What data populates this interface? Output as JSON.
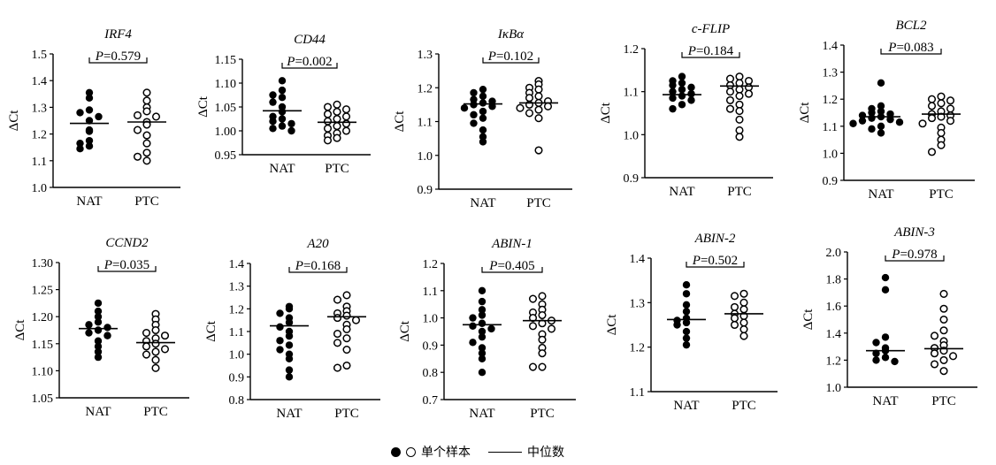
{
  "legend": {
    "individual_label": "单个样本",
    "median_label": "中位数"
  },
  "chart_data": [
    {
      "type": "scatter",
      "title": "IRF4",
      "p_label": "P=0.579",
      "ylabel": "ΔCt",
      "ylim": [
        1.0,
        1.5
      ],
      "yticks": [
        "1.0",
        "1.1",
        "1.2",
        "1.3",
        "1.4",
        "1.5"
      ],
      "categories": [
        "NAT",
        "PTC"
      ],
      "series": [
        {
          "name": "NAT",
          "values": [
            1.355,
            1.335,
            1.29,
            1.28,
            1.265,
            1.25,
            1.215,
            1.21,
            1.175,
            1.165,
            1.155,
            1.145
          ],
          "median": 1.24
        },
        {
          "name": "PTC",
          "values": [
            1.355,
            1.325,
            1.3,
            1.285,
            1.27,
            1.265,
            1.245,
            1.235,
            1.215,
            1.195,
            1.165,
            1.13,
            1.115,
            1.1
          ],
          "median": 1.245
        }
      ]
    },
    {
      "type": "scatter",
      "title": "CD44",
      "p_label": "P=0.002",
      "ylabel": "ΔCt",
      "ylim": [
        0.95,
        1.15
      ],
      "yticks": [
        "0.95",
        "1.00",
        "1.05",
        "1.10",
        "1.15"
      ],
      "categories": [
        "NAT",
        "PTC"
      ],
      "series": [
        {
          "name": "NAT",
          "values": [
            1.105,
            1.085,
            1.075,
            1.07,
            1.06,
            1.05,
            1.04,
            1.03,
            1.025,
            1.02,
            1.015,
            1.01,
            1.005,
            1.0
          ],
          "median": 1.042
        },
        {
          "name": "PTC",
          "values": [
            1.055,
            1.05,
            1.045,
            1.04,
            1.035,
            1.03,
            1.025,
            1.02,
            1.015,
            1.01,
            1.005,
            1.0,
            0.995,
            0.99,
            0.985,
            0.98
          ],
          "median": 1.018
        }
      ]
    },
    {
      "type": "scatter",
      "title": "IκBα",
      "p_label": "P=0.102",
      "ylabel": "ΔCt",
      "ylim": [
        0.9,
        1.3
      ],
      "yticks": [
        "0.9",
        "1.0",
        "1.1",
        "1.2",
        "1.3"
      ],
      "categories": [
        "NAT",
        "PTC"
      ],
      "series": [
        {
          "name": "NAT",
          "values": [
            1.195,
            1.185,
            1.175,
            1.165,
            1.16,
            1.155,
            1.15,
            1.145,
            1.14,
            1.13,
            1.12,
            1.11,
            1.095,
            1.075,
            1.055,
            1.04
          ],
          "median": 1.152
        },
        {
          "name": "PTC",
          "values": [
            1.22,
            1.21,
            1.2,
            1.195,
            1.185,
            1.175,
            1.17,
            1.16,
            1.155,
            1.15,
            1.145,
            1.14,
            1.135,
            1.125,
            1.11,
            1.015
          ],
          "median": 1.155
        }
      ]
    },
    {
      "type": "scatter",
      "title": "c-FLIP",
      "p_label": "P=0.184",
      "ylabel": "ΔCt",
      "ylim": [
        0.9,
        1.2
      ],
      "yticks": [
        "0.9",
        "1.0",
        "1.1",
        "1.2"
      ],
      "categories": [
        "NAT",
        "PTC"
      ],
      "series": [
        {
          "name": "NAT",
          "values": [
            1.135,
            1.125,
            1.12,
            1.115,
            1.11,
            1.105,
            1.1,
            1.095,
            1.09,
            1.085,
            1.08,
            1.07,
            1.06
          ],
          "median": 1.093
        },
        {
          "name": "PTC",
          "values": [
            1.135,
            1.13,
            1.125,
            1.12,
            1.115,
            1.11,
            1.105,
            1.1,
            1.095,
            1.09,
            1.08,
            1.07,
            1.06,
            1.055,
            1.035,
            1.01,
            0.995
          ],
          "median": 1.113
        }
      ]
    },
    {
      "type": "scatter",
      "title": "BCL2",
      "p_label": "P=0.083",
      "ylabel": "ΔCt",
      "ylim": [
        0.9,
        1.4
      ],
      "yticks": [
        "0.9",
        "1.0",
        "1.1",
        "1.2",
        "1.3",
        "1.4"
      ],
      "categories": [
        "NAT",
        "PTC"
      ],
      "series": [
        {
          "name": "NAT",
          "values": [
            1.26,
            1.175,
            1.165,
            1.155,
            1.15,
            1.145,
            1.14,
            1.135,
            1.13,
            1.125,
            1.12,
            1.115,
            1.11,
            1.1,
            1.09,
            1.075
          ],
          "median": 1.135
        },
        {
          "name": "PTC",
          "values": [
            1.21,
            1.2,
            1.195,
            1.185,
            1.175,
            1.165,
            1.155,
            1.145,
            1.14,
            1.135,
            1.13,
            1.12,
            1.11,
            1.095,
            1.075,
            1.05,
            1.03,
            1.005
          ],
          "median": 1.145
        }
      ]
    },
    {
      "type": "scatter",
      "title": "CCND2",
      "p_label": "P=0.035",
      "ylabel": "ΔCt",
      "ylim": [
        1.05,
        1.3
      ],
      "yticks": [
        "1.05",
        "1.10",
        "1.15",
        "1.20",
        "1.25",
        "1.30"
      ],
      "categories": [
        "NAT",
        "PTC"
      ],
      "series": [
        {
          "name": "NAT",
          "values": [
            1.225,
            1.21,
            1.2,
            1.19,
            1.185,
            1.18,
            1.175,
            1.17,
            1.165,
            1.155,
            1.145,
            1.135,
            1.125
          ],
          "median": 1.178
        },
        {
          "name": "PTC",
          "values": [
            1.205,
            1.195,
            1.185,
            1.175,
            1.17,
            1.165,
            1.16,
            1.155,
            1.15,
            1.145,
            1.14,
            1.135,
            1.13,
            1.12,
            1.105
          ],
          "median": 1.152
        }
      ]
    },
    {
      "type": "scatter",
      "title": "A20",
      "p_label": "P=0.168",
      "ylabel": "ΔCt",
      "ylim": [
        0.8,
        1.4
      ],
      "yticks": [
        "0.8",
        "0.9",
        "1.0",
        "1.1",
        "1.2",
        "1.3",
        "1.4"
      ],
      "categories": [
        "NAT",
        "PTC"
      ],
      "series": [
        {
          "name": "NAT",
          "values": [
            1.21,
            1.2,
            1.18,
            1.16,
            1.14,
            1.12,
            1.1,
            1.08,
            1.06,
            1.04,
            1.02,
            1.0,
            0.98,
            0.93,
            0.9
          ],
          "median": 1.125
        },
        {
          "name": "PTC",
          "values": [
            1.26,
            1.24,
            1.21,
            1.19,
            1.18,
            1.17,
            1.16,
            1.15,
            1.13,
            1.11,
            1.09,
            1.07,
            1.05,
            1.02,
            0.95,
            0.94
          ],
          "median": 1.165
        }
      ]
    },
    {
      "type": "scatter",
      "title": "ABIN-1",
      "p_label": "P=0.405",
      "ylabel": "ΔCt",
      "ylim": [
        0.7,
        1.2
      ],
      "yticks": [
        "0.7",
        "0.8",
        "0.9",
        "1.0",
        "1.1",
        "1.2"
      ],
      "categories": [
        "NAT",
        "PTC"
      ],
      "series": [
        {
          "name": "NAT",
          "values": [
            1.1,
            1.06,
            1.03,
            1.01,
            1.0,
            0.98,
            0.97,
            0.96,
            0.95,
            0.93,
            0.91,
            0.89,
            0.87,
            0.85,
            0.8
          ],
          "median": 0.975
        },
        {
          "name": "PTC",
          "values": [
            1.08,
            1.07,
            1.05,
            1.03,
            1.02,
            1.01,
            1.0,
            0.99,
            0.98,
            0.97,
            0.96,
            0.94,
            0.92,
            0.89,
            0.87,
            0.82,
            0.82
          ],
          "median": 0.99
        }
      ]
    },
    {
      "type": "scatter",
      "title": "ABIN-2",
      "p_label": "P=0.502",
      "ylabel": "ΔCt",
      "ylim": [
        1.1,
        1.4
      ],
      "yticks": [
        "1.1",
        "1.2",
        "1.3",
        "1.4"
      ],
      "categories": [
        "NAT",
        "PTC"
      ],
      "series": [
        {
          "name": "NAT",
          "values": [
            1.34,
            1.32,
            1.295,
            1.28,
            1.265,
            1.26,
            1.255,
            1.25,
            1.235,
            1.22,
            1.205
          ],
          "median": 1.262
        },
        {
          "name": "PTC",
          "values": [
            1.32,
            1.315,
            1.3,
            1.29,
            1.285,
            1.275,
            1.27,
            1.265,
            1.255,
            1.25,
            1.24,
            1.225
          ],
          "median": 1.275
        }
      ]
    },
    {
      "type": "scatter",
      "title": "ABIN-3",
      "p_label": "P=0.978",
      "ylabel": "ΔCt",
      "ylim": [
        1.0,
        2.0
      ],
      "yticks": [
        "1.0",
        "1.2",
        "1.4",
        "1.6",
        "1.8",
        "2.0"
      ],
      "categories": [
        "NAT",
        "PTC"
      ],
      "series": [
        {
          "name": "NAT",
          "values": [
            1.81,
            1.72,
            1.37,
            1.33,
            1.29,
            1.27,
            1.25,
            1.22,
            1.2,
            1.19
          ],
          "median": 1.27
        },
        {
          "name": "PTC",
          "values": [
            1.69,
            1.58,
            1.5,
            1.42,
            1.38,
            1.34,
            1.31,
            1.29,
            1.27,
            1.25,
            1.23,
            1.2,
            1.17,
            1.12
          ],
          "median": 1.285
        }
      ]
    }
  ]
}
